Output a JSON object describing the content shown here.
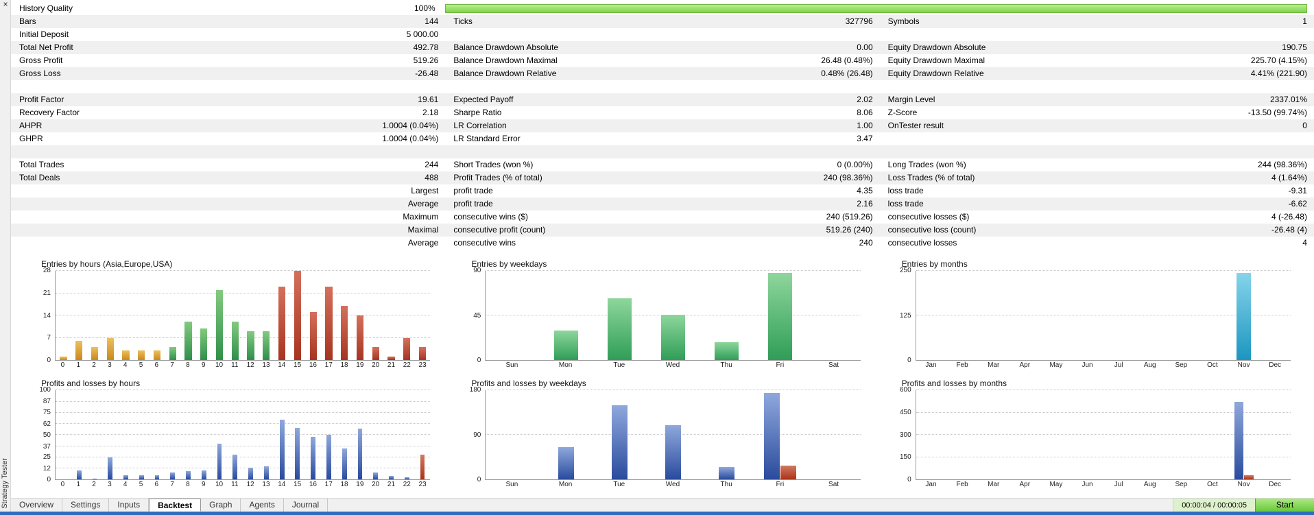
{
  "panel": {
    "title": "Strategy Tester",
    "close_glyph": "×"
  },
  "stats": {
    "history_quality": {
      "label": "History Quality",
      "value": "100%",
      "fill_percent": 100
    },
    "rows": [
      {
        "cells": [
          [
            "Bars",
            "144"
          ],
          [
            "Ticks",
            "327796"
          ],
          [
            "Symbols",
            "1"
          ]
        ]
      },
      {
        "cells": [
          [
            "Initial Deposit",
            "5 000.00"
          ],
          [
            "",
            ""
          ],
          [
            "",
            ""
          ]
        ]
      },
      {
        "cells": [
          [
            "Total Net Profit",
            "492.78"
          ],
          [
            "Balance Drawdown Absolute",
            "0.00"
          ],
          [
            "Equity Drawdown Absolute",
            "190.75"
          ]
        ]
      },
      {
        "cells": [
          [
            "Gross Profit",
            "519.26"
          ],
          [
            "Balance Drawdown Maximal",
            "26.48 (0.48%)"
          ],
          [
            "Equity Drawdown Maximal",
            "225.70 (4.15%)"
          ]
        ]
      },
      {
        "cells": [
          [
            "Gross Loss",
            "-26.48"
          ],
          [
            "Balance Drawdown Relative",
            "0.48% (26.48)"
          ],
          [
            "Equity Drawdown Relative",
            "4.41% (221.90)"
          ]
        ]
      },
      {
        "blank": true
      },
      {
        "cells": [
          [
            "Profit Factor",
            "19.61"
          ],
          [
            "Expected Payoff",
            "2.02"
          ],
          [
            "Margin Level",
            "2337.01%"
          ]
        ]
      },
      {
        "cells": [
          [
            "Recovery Factor",
            "2.18"
          ],
          [
            "Sharpe Ratio",
            "8.06"
          ],
          [
            "Z-Score",
            "-13.50 (99.74%)"
          ]
        ]
      },
      {
        "cells": [
          [
            "AHPR",
            "1.0004 (0.04%)"
          ],
          [
            "LR Correlation",
            "1.00"
          ],
          [
            "OnTester result",
            "0"
          ]
        ]
      },
      {
        "cells": [
          [
            "GHPR",
            "1.0004 (0.04%)"
          ],
          [
            "LR Standard Error",
            "3.47"
          ],
          [
            "",
            ""
          ]
        ]
      },
      {
        "blank": true
      },
      {
        "cells": [
          [
            "Total Trades",
            "244"
          ],
          [
            "Short Trades (won %)",
            "0 (0.00%)"
          ],
          [
            "Long Trades (won %)",
            "244 (98.36%)"
          ]
        ]
      },
      {
        "cells": [
          [
            "Total Deals",
            "488"
          ],
          [
            "Profit Trades (% of total)",
            "240 (98.36%)"
          ],
          [
            "Loss Trades (% of total)",
            "4 (1.64%)"
          ]
        ]
      },
      {
        "cells": [
          [
            "",
            "Largest"
          ],
          [
            "profit trade",
            "4.35"
          ],
          [
            "loss trade",
            "-9.31"
          ]
        ]
      },
      {
        "cells": [
          [
            "",
            "Average"
          ],
          [
            "profit trade",
            "2.16"
          ],
          [
            "loss trade",
            "-6.62"
          ]
        ]
      },
      {
        "cells": [
          [
            "",
            "Maximum"
          ],
          [
            "consecutive wins ($)",
            "240 (519.26)"
          ],
          [
            "consecutive losses ($)",
            "4 (-26.48)"
          ]
        ]
      },
      {
        "cells": [
          [
            "",
            "Maximal"
          ],
          [
            "consecutive profit (count)",
            "519.26 (240)"
          ],
          [
            "consecutive loss (count)",
            "-26.48 (4)"
          ]
        ]
      },
      {
        "cells": [
          [
            "",
            "Average"
          ],
          [
            "consecutive wins",
            "240"
          ],
          [
            "consecutive losses",
            "4"
          ]
        ]
      }
    ]
  },
  "palette": {
    "asia": [
      "#eec05e",
      "#c8891c"
    ],
    "europe": [
      "#84ca80",
      "#2e8f4a"
    ],
    "usa": [
      "#d4705c",
      "#a63420"
    ],
    "weekday": [
      "#8ed69c",
      "#2f9e57"
    ],
    "month": [
      "#86d4ea",
      "#1b96c0"
    ],
    "profit": [
      "#8fa8dc",
      "#2a4b9d"
    ],
    "loss": [
      "#d07a62",
      "#aa3318"
    ]
  },
  "chart_data": [
    {
      "type": "bar",
      "title": "Entries by hours (Asia,Europe,USA)",
      "categories": [
        "0",
        "1",
        "2",
        "3",
        "4",
        "5",
        "6",
        "7",
        "8",
        "9",
        "10",
        "11",
        "12",
        "13",
        "14",
        "15",
        "16",
        "17",
        "18",
        "19",
        "20",
        "21",
        "22",
        "23"
      ],
      "values": [
        1,
        6,
        4,
        7,
        3,
        3,
        3,
        4,
        12,
        10,
        22,
        12,
        9,
        9,
        23,
        28,
        15,
        23,
        17,
        14,
        4,
        1,
        7,
        4
      ],
      "bar_palette": [
        "asia",
        "asia",
        "asia",
        "asia",
        "asia",
        "asia",
        "asia",
        "europe",
        "europe",
        "europe",
        "europe",
        "europe",
        "europe",
        "europe",
        "usa",
        "usa",
        "usa",
        "usa",
        "usa",
        "usa",
        "usa",
        "usa",
        "usa",
        "usa"
      ],
      "ymax": 28,
      "yticks": [
        0,
        7,
        14,
        21,
        28
      ],
      "grid": "dotted",
      "legend": "none"
    },
    {
      "type": "bar",
      "title": "Entries by weekdays",
      "categories": [
        "Sun",
        "Mon",
        "Tue",
        "Wed",
        "Thu",
        "Fri",
        "Sat"
      ],
      "values": [
        0,
        30,
        62,
        46,
        18,
        88,
        0
      ],
      "palette": "weekday",
      "ymax": 90,
      "yticks": [
        0,
        45,
        90
      ],
      "grid": "dotted",
      "legend": "none"
    },
    {
      "type": "bar",
      "title": "Entries by months",
      "categories": [
        "Jan",
        "Feb",
        "Mar",
        "Apr",
        "May",
        "Jun",
        "Jul",
        "Aug",
        "Sep",
        "Oct",
        "Nov",
        "Dec"
      ],
      "values": [
        0,
        0,
        0,
        0,
        0,
        0,
        0,
        0,
        0,
        0,
        244,
        0
      ],
      "palette": "month",
      "ymax": 250,
      "yticks": [
        0,
        125,
        250
      ],
      "grid": "dotted",
      "legend": "none"
    },
    {
      "type": "bar",
      "title": "Profits and losses by hours",
      "categories": [
        "0",
        "1",
        "2",
        "3",
        "4",
        "5",
        "6",
        "7",
        "8",
        "9",
        "10",
        "11",
        "12",
        "13",
        "14",
        "15",
        "16",
        "17",
        "18",
        "19",
        "20",
        "21",
        "22",
        "23"
      ],
      "series": [
        {
          "name": "profit",
          "palette": "profit",
          "values": [
            0,
            10,
            1,
            25,
            5,
            5,
            5,
            8,
            9,
            10,
            40,
            28,
            13,
            15,
            67,
            58,
            48,
            50,
            35,
            57,
            8,
            4,
            2,
            0
          ]
        },
        {
          "name": "loss",
          "palette": "loss",
          "values": [
            0,
            0,
            0,
            0,
            0,
            0,
            0,
            0,
            0,
            0,
            0,
            0,
            0,
            0,
            0,
            0,
            0,
            0,
            0,
            0,
            0,
            0,
            0,
            28
          ]
        }
      ],
      "ymax": 100,
      "yticks": [
        0,
        12,
        25,
        37,
        50,
        62,
        75,
        87,
        100
      ],
      "grid": "dotted",
      "legend": "none"
    },
    {
      "type": "bar",
      "title": "Profits and losses by weekdays",
      "categories": [
        "Sun",
        "Mon",
        "Tue",
        "Wed",
        "Thu",
        "Fri",
        "Sat"
      ],
      "series": [
        {
          "name": "profit",
          "palette": "profit",
          "values": [
            0,
            65,
            150,
            110,
            25,
            175,
            0
          ]
        },
        {
          "name": "loss",
          "palette": "loss",
          "values": [
            0,
            0,
            0,
            0,
            0,
            28,
            0
          ]
        }
      ],
      "ymax": 180,
      "yticks": [
        0,
        90,
        180
      ],
      "grid": "dotted",
      "legend": "none"
    },
    {
      "type": "bar",
      "title": "Profits and losses by months",
      "categories": [
        "Jan",
        "Feb",
        "Mar",
        "Apr",
        "May",
        "Jun",
        "Jul",
        "Aug",
        "Sep",
        "Oct",
        "Nov",
        "Dec"
      ],
      "series": [
        {
          "name": "profit",
          "palette": "profit",
          "values": [
            0,
            0,
            0,
            0,
            0,
            0,
            0,
            0,
            0,
            0,
            520,
            0
          ]
        },
        {
          "name": "loss",
          "palette": "loss",
          "values": [
            0,
            0,
            0,
            0,
            0,
            0,
            0,
            0,
            0,
            0,
            26,
            0
          ]
        }
      ],
      "ymax": 600,
      "yticks": [
        0,
        150,
        300,
        450,
        600
      ],
      "grid": "dotted",
      "legend": "none"
    }
  ],
  "tabs": {
    "items": [
      "Overview",
      "Settings",
      "Inputs",
      "Backtest",
      "Graph",
      "Agents",
      "Journal"
    ],
    "active": "Backtest"
  },
  "statusbar": {
    "time": "00:00:04 / 00:00:05",
    "start_label": "Start"
  }
}
